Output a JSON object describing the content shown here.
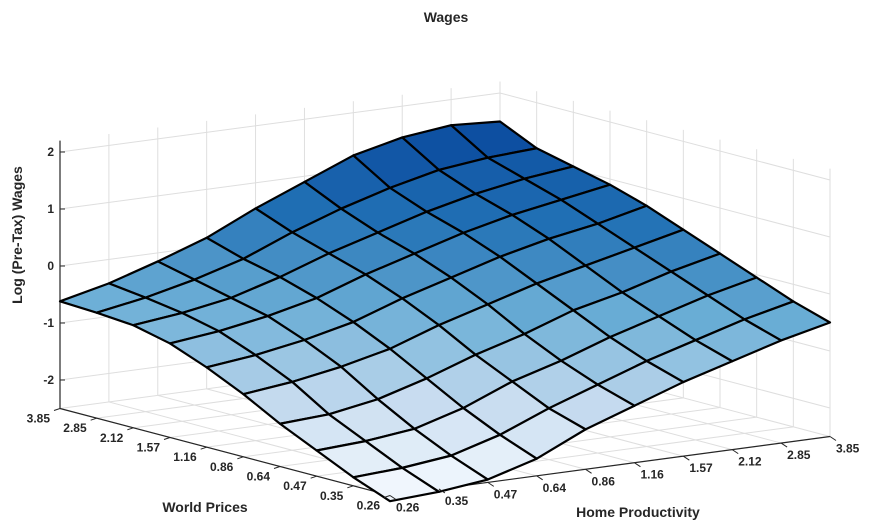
{
  "chart_data": {
    "type": "surface",
    "title": "Wages",
    "xlabel": "World Prices",
    "ylabel": "Home Productivity",
    "zlabel": "Log (Pre-Tax) Wages",
    "world_prices_ticks": [
      "3.85",
      "2.85",
      "2.12",
      "1.57",
      "1.16",
      "0.86",
      "0.64",
      "0.47",
      "0.35",
      "0.26"
    ],
    "home_productivity_ticks": [
      "0.26",
      "0.35",
      "0.47",
      "0.64",
      "0.86",
      "1.16",
      "1.57",
      "2.12",
      "2.85",
      "3.85"
    ],
    "z_ticks": [
      "2",
      "1",
      "0",
      "-1",
      "-2"
    ],
    "zlim": [
      -2.5,
      2.2
    ],
    "grid": true,
    "colormap": "blues",
    "color_low": "#f2f8ff",
    "color_high": "#08479c",
    "edge_color": "#000000",
    "wage_surface_note_rows": "rows ordered by World Prices from 0.26 to 3.85, columns by Home Productivity from 0.26 to 3.85",
    "z": [
      [
        -2.6,
        -2.55,
        -2.45,
        -2.2,
        -1.8,
        -1.5,
        -1.2,
        -0.95,
        -0.7,
        -0.5
      ],
      [
        -2.35,
        -2.3,
        -2.2,
        -1.95,
        -1.6,
        -1.3,
        -1.0,
        -0.75,
        -0.5,
        -0.3
      ],
      [
        -2.05,
        -2.0,
        -1.9,
        -1.65,
        -1.3,
        -1.05,
        -0.75,
        -0.5,
        -0.25,
        -0.05
      ],
      [
        -1.75,
        -1.7,
        -1.55,
        -1.3,
        -1.0,
        -0.75,
        -0.45,
        -0.25,
        0.0,
        0.2
      ],
      [
        -1.4,
        -1.3,
        -1.15,
        -0.95,
        -0.65,
        -0.4,
        -0.15,
        0.05,
        0.25,
        0.45
      ],
      [
        -1.1,
        -1.0,
        -0.85,
        -0.65,
        -0.35,
        -0.1,
        0.15,
        0.35,
        0.5,
        0.7
      ],
      [
        -0.85,
        -0.75,
        -0.6,
        -0.4,
        -0.1,
        0.15,
        0.4,
        0.6,
        0.75,
        0.9
      ],
      [
        -0.7,
        -0.6,
        -0.45,
        -0.2,
        0.1,
        0.35,
        0.6,
        0.8,
        0.95,
        1.05
      ],
      [
        -0.65,
        -0.5,
        -0.3,
        -0.05,
        0.3,
        0.6,
        0.85,
        1.05,
        1.15,
        1.2
      ],
      [
        -0.62,
        -0.42,
        -0.15,
        0.15,
        0.55,
        0.9,
        1.25,
        1.45,
        1.55,
        1.5
      ]
    ]
  }
}
